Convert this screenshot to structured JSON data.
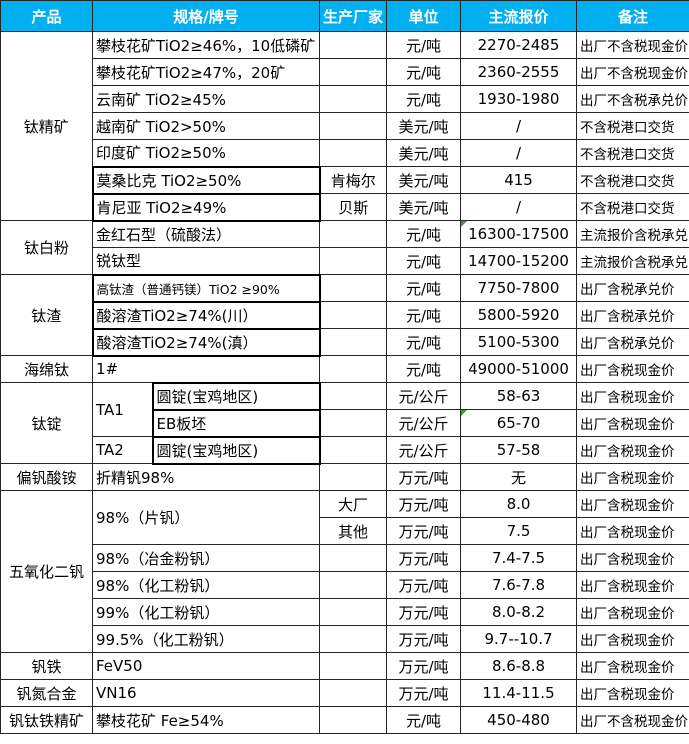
{
  "colors": {
    "header_bg": "#00b0f0",
    "header_text": "#ffffff",
    "border": "#262626",
    "marker_green": "#3f9c35",
    "text": "#000000"
  },
  "table": {
    "columns": {
      "widths": [
        92,
        60,
        167,
        67,
        74,
        116,
        113
      ]
    },
    "header": {
      "cells": [
        {
          "id": "product",
          "text": "产品"
        },
        {
          "id": "spec",
          "text": "规格/牌号",
          "colspan": 2
        },
        {
          "id": "maker",
          "text": "生产厂家"
        },
        {
          "id": "unit",
          "text": "单位"
        },
        {
          "id": "price",
          "text": "主流报价"
        },
        {
          "id": "note",
          "text": "备注"
        }
      ]
    },
    "rows": [
      {
        "cells": [
          {
            "kind": "product",
            "text": "钛精矿",
            "rowspan": 7
          },
          {
            "kind": "spec",
            "text": "攀枝花矿TiO2≥46%，10低磷矿"
          },
          {
            "kind": "maker",
            "text": ""
          },
          {
            "kind": "unit",
            "text": "元/吨"
          },
          {
            "kind": "price",
            "text": "2270-2485"
          },
          {
            "kind": "note",
            "text": "出厂不含税现金价"
          }
        ]
      },
      {
        "cells": [
          {
            "kind": "spec",
            "text": "攀枝花矿TiO2≥47%，20矿"
          },
          {
            "kind": "maker",
            "text": ""
          },
          {
            "kind": "unit",
            "text": "元/吨"
          },
          {
            "kind": "price",
            "text": "2360-2555"
          },
          {
            "kind": "note",
            "text": "出厂不含税现金价"
          }
        ]
      },
      {
        "cells": [
          {
            "kind": "spec",
            "text": "云南矿 TiO2≥45%"
          },
          {
            "kind": "maker",
            "text": ""
          },
          {
            "kind": "unit",
            "text": "元/吨"
          },
          {
            "kind": "price",
            "text": "1930-1980"
          },
          {
            "kind": "note",
            "text": "出厂不含税承兑价"
          }
        ]
      },
      {
        "cells": [
          {
            "kind": "spec",
            "text": "越南矿 TiO2>50%"
          },
          {
            "kind": "maker",
            "text": ""
          },
          {
            "kind": "unit",
            "text": "美元/吨"
          },
          {
            "kind": "price",
            "text": "/"
          },
          {
            "kind": "note",
            "text": "不含税港口交货"
          }
        ]
      },
      {
        "cells": [
          {
            "kind": "spec",
            "text": "印度矿 TiO2≥50%"
          },
          {
            "kind": "maker",
            "text": ""
          },
          {
            "kind": "unit",
            "text": "美元/吨"
          },
          {
            "kind": "price",
            "text": "/"
          },
          {
            "kind": "note",
            "text": "不含税港口交货"
          }
        ]
      },
      {
        "cells": [
          {
            "kind": "spec",
            "text": "莫桑比克 TiO2≥50%",
            "boxed": true
          },
          {
            "kind": "maker",
            "text": "肯梅尔"
          },
          {
            "kind": "unit",
            "text": "美元/吨"
          },
          {
            "kind": "price",
            "text": "415"
          },
          {
            "kind": "note",
            "text": "不含税港口交货"
          }
        ]
      },
      {
        "cells": [
          {
            "kind": "spec",
            "text": "肯尼亚 TiO2≥49%",
            "boxed": true
          },
          {
            "kind": "maker",
            "text": "贝斯"
          },
          {
            "kind": "unit",
            "text": "美元/吨"
          },
          {
            "kind": "price",
            "text": "/"
          },
          {
            "kind": "note",
            "text": "不含税港口交货"
          }
        ]
      },
      {
        "cells": [
          {
            "kind": "product",
            "text": "钛白粉",
            "rowspan": 2
          },
          {
            "kind": "spec",
            "text": "金红石型（硫酸法）"
          },
          {
            "kind": "maker",
            "text": ""
          },
          {
            "kind": "unit",
            "text": "元/吨"
          },
          {
            "kind": "price",
            "text": "16300-17500",
            "marker": true
          },
          {
            "kind": "note",
            "text": "主流报价含税承兑"
          }
        ]
      },
      {
        "cells": [
          {
            "kind": "spec",
            "text": "锐钛型"
          },
          {
            "kind": "maker",
            "text": ""
          },
          {
            "kind": "unit",
            "text": "元/吨"
          },
          {
            "kind": "price",
            "text": "14700-15200"
          },
          {
            "kind": "note",
            "text": "主流报价含税承兑"
          }
        ]
      },
      {
        "cells": [
          {
            "kind": "product",
            "text": "钛渣",
            "rowspan": 3
          },
          {
            "kind": "spec",
            "text": "高钛渣（普通钙镁）TiO2 ≥90%",
            "boxed": true,
            "small": true
          },
          {
            "kind": "maker",
            "text": ""
          },
          {
            "kind": "unit",
            "text": "元/吨"
          },
          {
            "kind": "price",
            "text": "7750-7800"
          },
          {
            "kind": "note",
            "text": "出厂含税承兑价"
          }
        ]
      },
      {
        "cells": [
          {
            "kind": "spec",
            "text": "酸溶渣TiO2≥74%(川）",
            "boxed": true
          },
          {
            "kind": "maker",
            "text": ""
          },
          {
            "kind": "unit",
            "text": "元/吨"
          },
          {
            "kind": "price",
            "text": "5800-5920"
          },
          {
            "kind": "note",
            "text": "出厂含税承兑价"
          }
        ]
      },
      {
        "cells": [
          {
            "kind": "spec",
            "text": "酸溶渣TiO2≥74%(滇）",
            "boxed": true
          },
          {
            "kind": "maker",
            "text": ""
          },
          {
            "kind": "unit",
            "text": "元/吨"
          },
          {
            "kind": "price",
            "text": "5100-5300"
          },
          {
            "kind": "note",
            "text": "出厂含税承兑价"
          }
        ]
      },
      {
        "cells": [
          {
            "kind": "product",
            "text": "海绵钛"
          },
          {
            "kind": "spec",
            "text": "1#"
          },
          {
            "kind": "maker",
            "text": ""
          },
          {
            "kind": "unit",
            "text": "元/吨"
          },
          {
            "kind": "price",
            "text": "49000-51000"
          },
          {
            "kind": "note",
            "text": "出厂含税现金价"
          }
        ]
      },
      {
        "cells": [
          {
            "kind": "product",
            "text": "钛锭",
            "rowspan": 3
          },
          {
            "kind": "spec-a",
            "text": "TA1",
            "rowspan": 2
          },
          {
            "kind": "spec-b",
            "text": "圆锭(宝鸡地区)",
            "boxed": true
          },
          {
            "kind": "maker",
            "text": ""
          },
          {
            "kind": "unit",
            "text": "元/公斤"
          },
          {
            "kind": "price",
            "text": "58-63"
          },
          {
            "kind": "note",
            "text": "出厂含税现金价"
          }
        ]
      },
      {
        "cells": [
          {
            "kind": "spec-b",
            "text": "EB板坯",
            "boxed": true
          },
          {
            "kind": "maker",
            "text": ""
          },
          {
            "kind": "unit",
            "text": "元/公斤"
          },
          {
            "kind": "price",
            "text": "65-70",
            "marker": true
          },
          {
            "kind": "note",
            "text": "出厂含税现金价"
          }
        ]
      },
      {
        "cells": [
          {
            "kind": "spec-a",
            "text": "TA2"
          },
          {
            "kind": "spec-b",
            "text": "圆锭(宝鸡地区)",
            "boxed": true
          },
          {
            "kind": "maker",
            "text": ""
          },
          {
            "kind": "unit",
            "text": "元/公斤"
          },
          {
            "kind": "price",
            "text": "57-58"
          },
          {
            "kind": "note",
            "text": "出厂含税现金价"
          }
        ]
      },
      {
        "cells": [
          {
            "kind": "product",
            "text": "偏钒酸铵"
          },
          {
            "kind": "spec",
            "text": "折精钒98%"
          },
          {
            "kind": "maker",
            "text": ""
          },
          {
            "kind": "unit",
            "text": "万元/吨"
          },
          {
            "kind": "price",
            "text": "无"
          },
          {
            "kind": "note",
            "text": "出厂含税现金价"
          }
        ]
      },
      {
        "cells": [
          {
            "kind": "product",
            "text": "五氧化二钒",
            "rowspan": 6
          },
          {
            "kind": "spec",
            "text": "98%（片钒）",
            "rowspan": 2
          },
          {
            "kind": "maker",
            "text": "大厂"
          },
          {
            "kind": "unit",
            "text": "万元/吨"
          },
          {
            "kind": "price",
            "text": "8.0"
          },
          {
            "kind": "note",
            "text": "出厂含税现金价"
          }
        ]
      },
      {
        "cells": [
          {
            "kind": "maker",
            "text": "其他"
          },
          {
            "kind": "unit",
            "text": "万元/吨"
          },
          {
            "kind": "price",
            "text": "7.5"
          },
          {
            "kind": "note",
            "text": "出厂含税现金价"
          }
        ]
      },
      {
        "cells": [
          {
            "kind": "spec",
            "text": "98%（冶金粉钒）"
          },
          {
            "kind": "maker",
            "text": ""
          },
          {
            "kind": "unit",
            "text": "万元/吨"
          },
          {
            "kind": "price",
            "text": "7.4-7.5"
          },
          {
            "kind": "note",
            "text": "出厂含税现金价"
          }
        ]
      },
      {
        "cells": [
          {
            "kind": "spec",
            "text": "98%（化工粉钒）"
          },
          {
            "kind": "maker",
            "text": ""
          },
          {
            "kind": "unit",
            "text": "万元/吨"
          },
          {
            "kind": "price",
            "text": "7.6-7.8"
          },
          {
            "kind": "note",
            "text": "出厂含税现金价"
          }
        ]
      },
      {
        "cells": [
          {
            "kind": "spec",
            "text": "99%（化工粉钒）"
          },
          {
            "kind": "maker",
            "text": ""
          },
          {
            "kind": "unit",
            "text": "万元/吨"
          },
          {
            "kind": "price",
            "text": "8.0-8.2"
          },
          {
            "kind": "note",
            "text": "出厂含税现金价"
          }
        ]
      },
      {
        "cells": [
          {
            "kind": "spec",
            "text": "99.5%（化工粉钒）"
          },
          {
            "kind": "maker",
            "text": ""
          },
          {
            "kind": "unit",
            "text": "万元/吨"
          },
          {
            "kind": "price",
            "text": "9.7--10.7"
          },
          {
            "kind": "note",
            "text": "出厂含税现金价"
          }
        ]
      },
      {
        "cells": [
          {
            "kind": "product",
            "text": "钒铁"
          },
          {
            "kind": "spec",
            "text": "FeV50"
          },
          {
            "kind": "maker",
            "text": ""
          },
          {
            "kind": "unit",
            "text": "万元/吨"
          },
          {
            "kind": "price",
            "text": "8.6-8.8"
          },
          {
            "kind": "note",
            "text": "出厂含税现金价"
          }
        ]
      },
      {
        "cells": [
          {
            "kind": "product",
            "text": "钒氮合金"
          },
          {
            "kind": "spec",
            "text": "VN16"
          },
          {
            "kind": "maker",
            "text": ""
          },
          {
            "kind": "unit",
            "text": "万元/吨"
          },
          {
            "kind": "price",
            "text": "11.4-11.5"
          },
          {
            "kind": "note",
            "text": "出厂含税现金价"
          }
        ]
      },
      {
        "cells": [
          {
            "kind": "product",
            "text": "钒钛铁精矿"
          },
          {
            "kind": "spec",
            "text": "攀枝花矿 Fe≥54%"
          },
          {
            "kind": "maker",
            "text": ""
          },
          {
            "kind": "unit",
            "text": "元/吨"
          },
          {
            "kind": "price",
            "text": "450-480"
          },
          {
            "kind": "note",
            "text": "出厂不含税现金价"
          }
        ]
      }
    ]
  }
}
